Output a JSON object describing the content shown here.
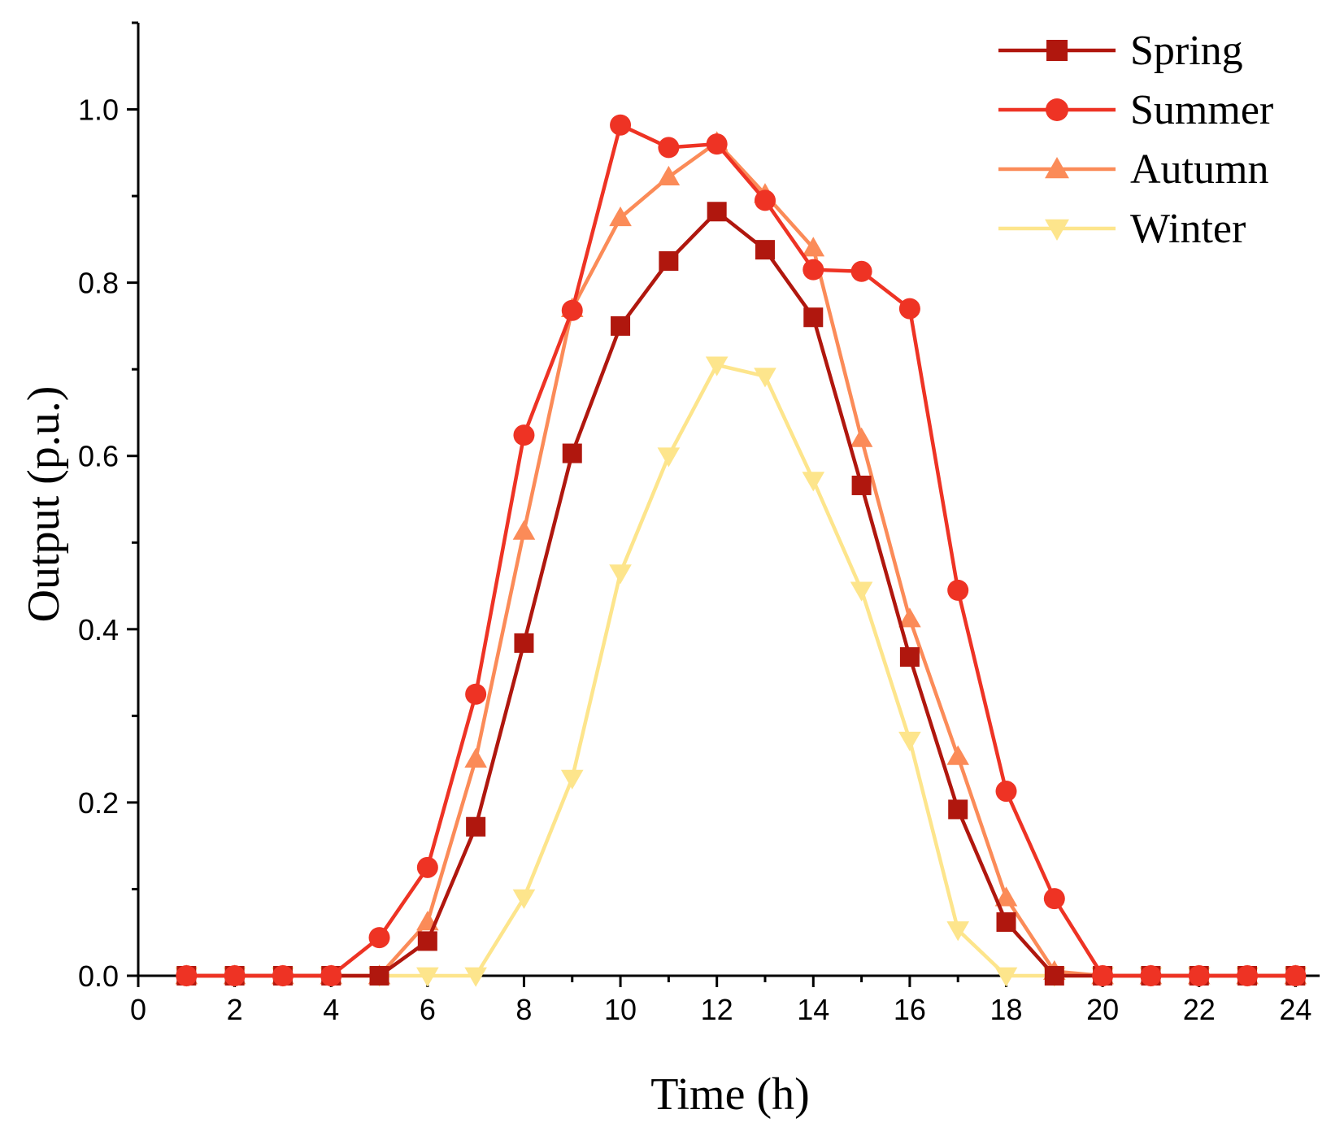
{
  "chart_data": {
    "type": "line",
    "title": "",
    "xlabel": "Time (h)",
    "ylabel": "Output (p.u.)",
    "xlim": [
      0,
      24.5
    ],
    "ylim": [
      0,
      1.1
    ],
    "xticks": [
      0,
      2,
      4,
      6,
      8,
      10,
      12,
      14,
      16,
      18,
      20,
      22,
      24
    ],
    "xtick_labels": [
      "0",
      "2",
      "4",
      "6",
      "8",
      "10",
      "12",
      "14",
      "16",
      "18",
      "20",
      "22",
      "24"
    ],
    "yticks": [
      0.0,
      0.2,
      0.4,
      0.6,
      0.8,
      1.0
    ],
    "ytick_labels": [
      "0.0",
      "0.2",
      "0.4",
      "0.6",
      "0.8",
      "1.0"
    ],
    "y_minor_step": 0.1,
    "grid": false,
    "legend_position": "top-right",
    "x": [
      1,
      2,
      3,
      4,
      5,
      6,
      7,
      8,
      9,
      10,
      11,
      12,
      13,
      14,
      15,
      16,
      17,
      18,
      19,
      20,
      21,
      22,
      23,
      24
    ],
    "series": [
      {
        "name": "Spring",
        "color": "#b0170e",
        "marker": "square",
        "values": [
          0,
          0,
          0,
          0,
          0,
          0.04,
          0.172,
          0.384,
          0.603,
          0.75,
          0.825,
          0.882,
          0.838,
          0.76,
          0.566,
          0.368,
          0.192,
          0.062,
          0,
          0,
          0,
          0,
          0,
          0
        ]
      },
      {
        "name": "Summer",
        "color": "#ee3324",
        "marker": "circle",
        "values": [
          0,
          0,
          0,
          0,
          0.044,
          0.125,
          0.325,
          0.624,
          0.768,
          0.982,
          0.956,
          0.96,
          0.895,
          0.815,
          0.813,
          0.77,
          0.445,
          0.213,
          0.089,
          0,
          0,
          0,
          0,
          0
        ]
      },
      {
        "name": "Autumn",
        "color": "#fb8b58",
        "marker": "triangle-up",
        "values": [
          0,
          0,
          0,
          0,
          0,
          0.062,
          0.25,
          0.513,
          0.77,
          0.875,
          0.922,
          0.962,
          0.902,
          0.84,
          0.62,
          0.412,
          0.253,
          0.09,
          0.005,
          0,
          0,
          0,
          0,
          0
        ]
      },
      {
        "name": "Winter",
        "color": "#fde58c",
        "marker": "triangle-down",
        "values": [
          0,
          0,
          0,
          0,
          0,
          0,
          0,
          0.09,
          0.228,
          0.465,
          0.6,
          0.705,
          0.692,
          0.572,
          0.445,
          0.272,
          0.053,
          0,
          0,
          0,
          0,
          0,
          0,
          0
        ]
      }
    ]
  }
}
